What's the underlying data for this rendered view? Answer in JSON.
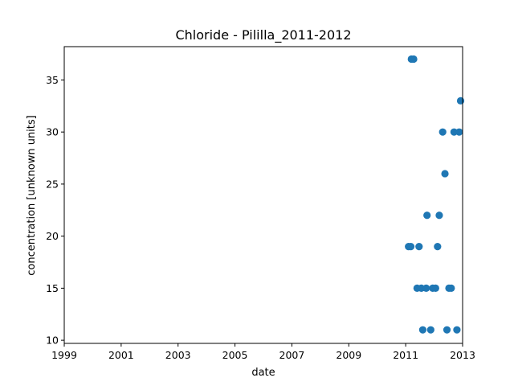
{
  "chart_data": {
    "type": "scatter",
    "title": "Chloride - Pililla_2011-2012",
    "xlabel": "date",
    "ylabel": "concentration [unknown units]",
    "xlim": [
      1999.0,
      2013.0
    ],
    "ylim": [
      9.7,
      38.2
    ],
    "x_ticks": [
      "1999",
      "2001",
      "2003",
      "2005",
      "2007",
      "2009",
      "2011",
      "2013"
    ],
    "y_ticks": [
      "10",
      "15",
      "20",
      "25",
      "30",
      "35"
    ],
    "grid": false,
    "legend": "none",
    "marker_color": "#1f77b4",
    "points": [
      {
        "x": 2011.1,
        "y": 19
      },
      {
        "x": 2011.18,
        "y": 19
      },
      {
        "x": 2011.2,
        "y": 37
      },
      {
        "x": 2011.28,
        "y": 37
      },
      {
        "x": 2011.4,
        "y": 15
      },
      {
        "x": 2011.47,
        "y": 19
      },
      {
        "x": 2011.55,
        "y": 15
      },
      {
        "x": 2011.6,
        "y": 11
      },
      {
        "x": 2011.72,
        "y": 15
      },
      {
        "x": 2011.75,
        "y": 22
      },
      {
        "x": 2011.88,
        "y": 11
      },
      {
        "x": 2011.95,
        "y": 15
      },
      {
        "x": 2012.05,
        "y": 15
      },
      {
        "x": 2012.12,
        "y": 19
      },
      {
        "x": 2012.18,
        "y": 22
      },
      {
        "x": 2012.3,
        "y": 30
      },
      {
        "x": 2012.38,
        "y": 26
      },
      {
        "x": 2012.45,
        "y": 11
      },
      {
        "x": 2012.52,
        "y": 15
      },
      {
        "x": 2012.6,
        "y": 15
      },
      {
        "x": 2012.7,
        "y": 30
      },
      {
        "x": 2012.8,
        "y": 11
      },
      {
        "x": 2012.88,
        "y": 30
      },
      {
        "x": 2012.93,
        "y": 33
      }
    ]
  }
}
